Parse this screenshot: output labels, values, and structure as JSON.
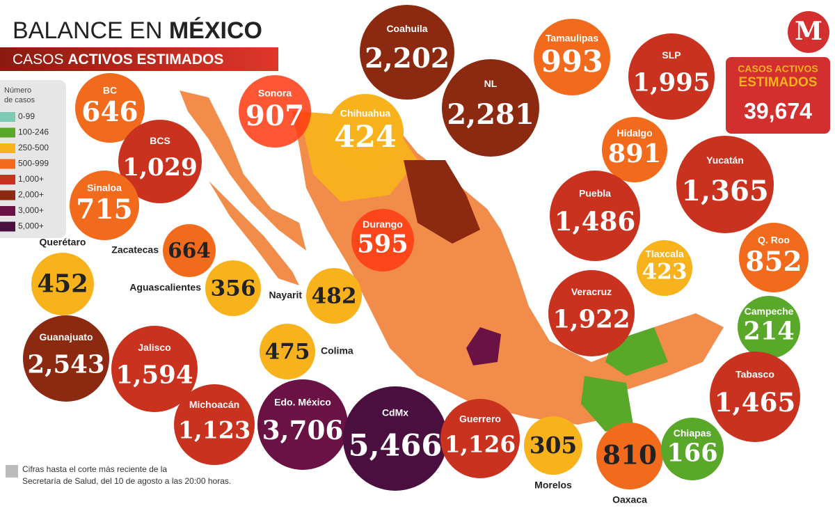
{
  "header": {
    "title_light": "BALANCE EN",
    "title_bold": "MÉXICO",
    "subtitle_light": "CASOS",
    "subtitle_bold": "ACTIVOS ESTIMADOS"
  },
  "logo": "M",
  "legend": {
    "title_lines": [
      "Número",
      "de casos"
    ],
    "items": [
      {
        "label": "0-99",
        "color": "#7fc8b4"
      },
      {
        "label": "100-246",
        "color": "#5aa82a"
      },
      {
        "label": "250-500",
        "color": "#f8b21c"
      },
      {
        "label": "500-999",
        "color": "#f26a1b"
      },
      {
        "label": "1,000+",
        "color": "#c8321e"
      },
      {
        "label": "2,000+",
        "color": "#8b2a10"
      },
      {
        "label": "3,000+",
        "color": "#6b1244"
      },
      {
        "label": "5,000+",
        "color": "#4a0f3f"
      }
    ]
  },
  "total": {
    "label_lines": [
      "CASOS ACTIVOS",
      "ESTIMADOS"
    ],
    "value": "39,674"
  },
  "states": [
    {
      "name": "BC",
      "value": "646",
      "color": "#f26a1b"
    },
    {
      "name": "Sonora",
      "value": "907",
      "color": "#ff3a10"
    },
    {
      "name": "Chihuahua",
      "value": "424",
      "color": "#f8b21c"
    },
    {
      "name": "Coahuila",
      "value": "2,202",
      "color": "#8b2a10"
    },
    {
      "name": "NL",
      "value": "2,281",
      "color": "#8b2a10"
    },
    {
      "name": "Tamaulipas",
      "value": "993",
      "color": "#f26a1b"
    },
    {
      "name": "SLP",
      "value": "1,995",
      "color": "#c8321e"
    },
    {
      "name": "Hidalgo",
      "value": "891",
      "color": "#f26a1b"
    },
    {
      "name": "BCS",
      "value": "1,029",
      "color": "#c8321e"
    },
    {
      "name": "Sinaloa",
      "value": "715",
      "color": "#f26a1b"
    },
    {
      "name": "Durango",
      "value": "595",
      "color": "#ff3a10"
    },
    {
      "name": "Zacatecas",
      "value": "664",
      "color": "#f26a1b"
    },
    {
      "name": "Aguascalientes",
      "value": "356",
      "color": "#f8b21c"
    },
    {
      "name": "Nayarit",
      "value": "482",
      "color": "#f8b21c"
    },
    {
      "name": "Querétaro",
      "value": "452",
      "color": "#f8b21c"
    },
    {
      "name": "Yucatán",
      "value": "1,365",
      "color": "#c8321e"
    },
    {
      "name": "Puebla",
      "value": "1,486",
      "color": "#c8321e"
    },
    {
      "name": "Tlaxcala",
      "value": "423",
      "color": "#f8b21c"
    },
    {
      "name": "Q. Roo",
      "value": "852",
      "color": "#f26a1b"
    },
    {
      "name": "Veracruz",
      "value": "1,922",
      "color": "#c8321e"
    },
    {
      "name": "Campeche",
      "value": "214",
      "color": "#5aa82a"
    },
    {
      "name": "Guanajuato",
      "value": "2,543",
      "color": "#8b2a10"
    },
    {
      "name": "Jalisco",
      "value": "1,594",
      "color": "#c8321e"
    },
    {
      "name": "Colima",
      "value": "475",
      "color": "#f8b21c"
    },
    {
      "name": "Tabasco",
      "value": "1,465",
      "color": "#c8321e"
    },
    {
      "name": "Michoacán",
      "value": "1,123",
      "color": "#c8321e"
    },
    {
      "name": "Edo. México",
      "value": "3,706",
      "color": "#6b1244"
    },
    {
      "name": "CdMx",
      "value": "5,466",
      "color": "#4a0f3f"
    },
    {
      "name": "Guerrero",
      "value": "1,126",
      "color": "#c8321e"
    },
    {
      "name": "Morelos",
      "value": "305",
      "color": "#f8b21c"
    },
    {
      "name": "Oaxaca",
      "value": "810",
      "color": "#f26a1b"
    },
    {
      "name": "Chiapas",
      "value": "166",
      "color": "#5aa82a"
    }
  ],
  "footnote_lines": [
    "Cifras hasta el corte más reciente de la",
    "Secretaría de Salud, del 10 de agosto a las 20:00 horas."
  ]
}
